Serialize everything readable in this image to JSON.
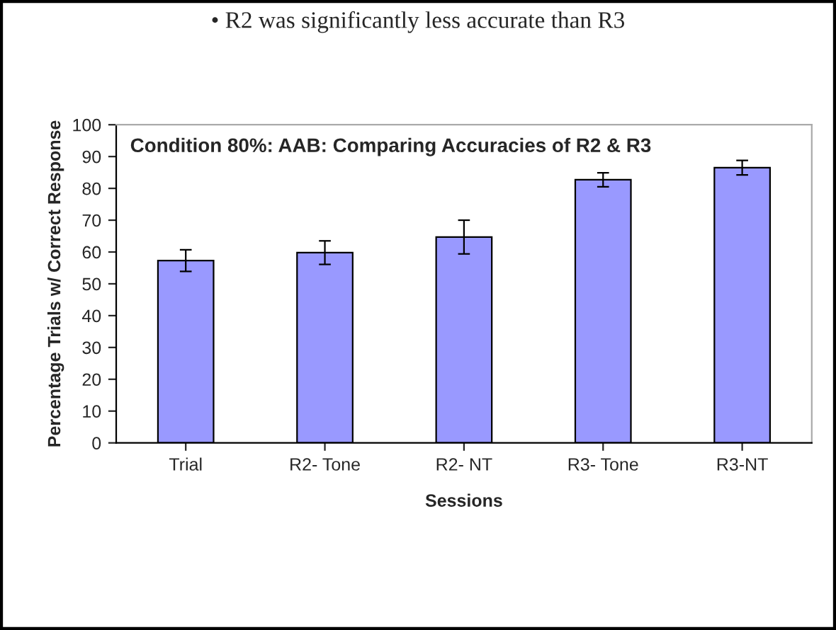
{
  "chart_data": {
    "type": "bar",
    "title": "Condition 80%: AAB: Comparing Accuracies of R2 & R3",
    "annotations": [
      "• R2 was significantly less accurate than R3"
    ],
    "xlabel": "Sessions",
    "ylabel": "Percentage Trials w/ Correct Response",
    "categories": [
      "Trial",
      "R2- Tone",
      "R2- NT",
      "R3- Tone",
      "R3-NT"
    ],
    "values": [
      57.3,
      59.8,
      64.7,
      82.7,
      86.5
    ],
    "errors": [
      3.4,
      3.7,
      5.3,
      2.2,
      2.3
    ],
    "color": "#9999ff",
    "ylim": [
      0,
      100
    ],
    "yticks": [
      0,
      10,
      20,
      30,
      40,
      50,
      60,
      70,
      80,
      90,
      100
    ],
    "grid": false,
    "legend": false
  }
}
